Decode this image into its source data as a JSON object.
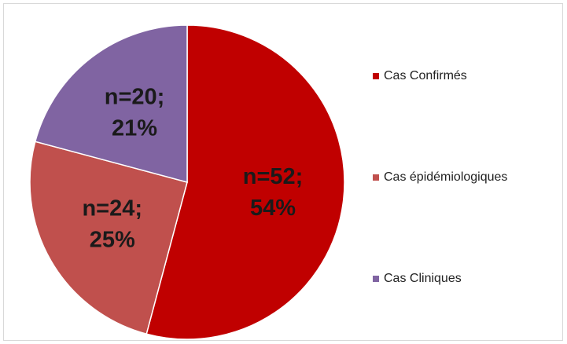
{
  "chart_data": {
    "type": "pie",
    "categories": [
      "Cas Confirmés",
      "Cas épidémiologiques",
      "Cas Cliniques"
    ],
    "values": [
      52,
      24,
      20
    ],
    "value_labels": [
      "n=52;",
      "n=24;",
      "n=20;"
    ],
    "percents": [
      54,
      25,
      21
    ],
    "percent_labels": [
      "54%",
      "25%",
      "21%"
    ],
    "colors": [
      "#c00000",
      "#c0504d",
      "#8064a2"
    ],
    "legend": "right"
  }
}
